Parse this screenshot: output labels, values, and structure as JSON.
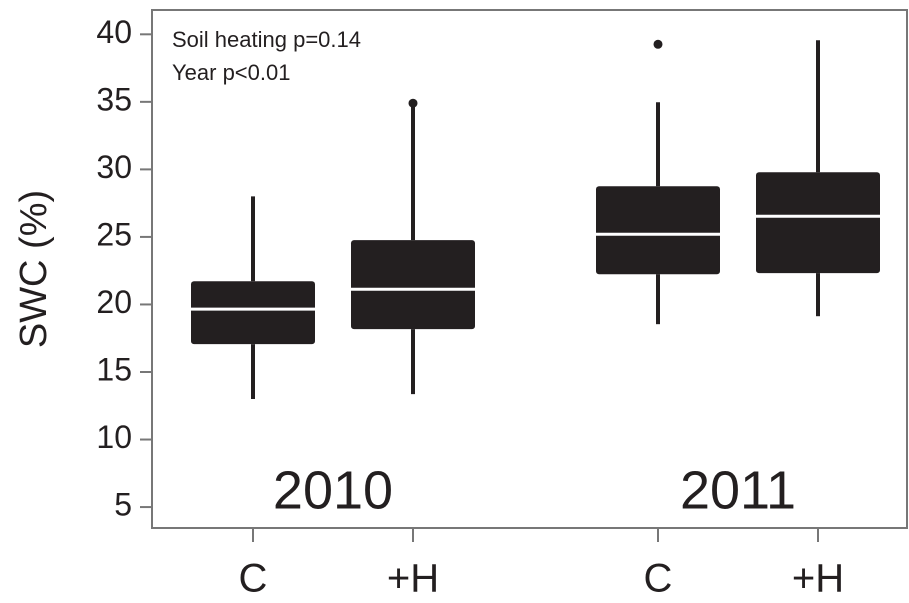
{
  "chart_data": {
    "type": "box",
    "y_label": "SWC (%)",
    "annotations": [
      "Soil heating p=0.14",
      "Year p<0.01"
    ],
    "groups": [
      "2010",
      "2011"
    ],
    "categories": [
      "C",
      "+H",
      "C",
      "+H"
    ],
    "box_color": "#231f20",
    "median_color": "#ffffff",
    "boxes": [
      {
        "whislo": 13.0,
        "q1": 17.06,
        "med": 19.65,
        "q3": 21.72,
        "whishi": 28.0,
        "fliers": []
      },
      {
        "whislo": 13.36,
        "q1": 18.17,
        "med": 21.13,
        "q3": 24.76,
        "whishi": 34.67,
        "fliers": [
          34.9
        ]
      },
      {
        "whislo": 18.54,
        "q1": 22.24,
        "med": 25.2,
        "q3": 28.75,
        "whishi": 34.97,
        "fliers": [
          39.26
        ]
      },
      {
        "whislo": 19.13,
        "q1": 22.32,
        "med": 26.53,
        "q3": 29.79,
        "whishi": 39.56,
        "fliers": []
      }
    ],
    "ylim": [
      3.45,
      41.8
    ],
    "yticks": [
      5,
      10,
      15,
      20,
      25,
      30,
      35,
      40
    ]
  }
}
